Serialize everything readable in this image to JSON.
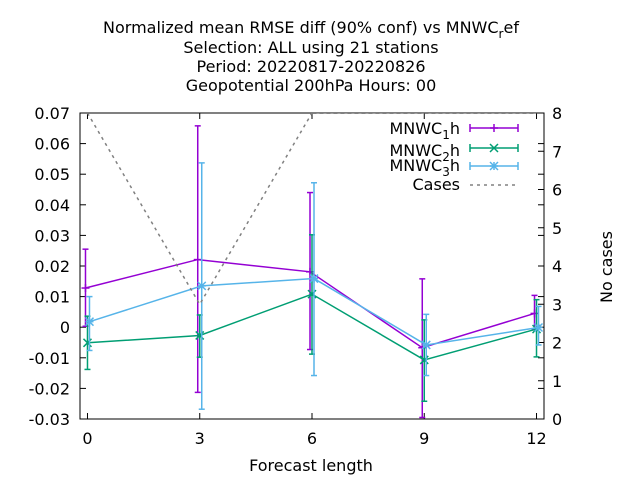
{
  "chart_data": {
    "type": "line",
    "title": {
      "line1_main": "Normalized mean RMSE diff (90% conf) vs MNWC",
      "line1_sub": "r",
      "line1_tail": "ef",
      "line2": "Selection: ALL using    21 stations",
      "line3": "Period: 20220817-20220826",
      "line4": "Geopotential 200hPa   Hours:  00"
    },
    "xlabel": "Forecast length",
    "y2label": "No cases",
    "xlim": [
      -0.2,
      12.2
    ],
    "ylim": [
      -0.03,
      0.07
    ],
    "y2lim": [
      0,
      8
    ],
    "x_ticks": [
      0,
      3,
      6,
      9,
      12
    ],
    "y_ticks": [
      "-0.03",
      "-0.02",
      "-0.01",
      "0",
      "0.01",
      "0.02",
      "0.03",
      "0.04",
      "0.05",
      "0.06",
      "0.07"
    ],
    "y2_ticks": [
      "0",
      "1",
      "2",
      "3",
      "4",
      "5",
      "6",
      "7",
      "8"
    ],
    "legend_position": "top-right",
    "series": [
      {
        "name_main": "MNWC",
        "name_sub": "1",
        "name_tail": "h",
        "color": "#9400d3",
        "marker": "plus",
        "x": [
          0,
          3,
          6,
          9,
          12
        ],
        "y": [
          0.0128,
          0.0221,
          0.0181,
          -0.0067,
          0.0045
        ],
        "ylow": [
          0.0003,
          -0.0213,
          -0.0073,
          -0.0295,
          -0.0006
        ],
        "yhigh": [
          0.0255,
          0.0658,
          0.044,
          0.0158,
          0.0104
        ]
      },
      {
        "name_main": "MNWC",
        "name_sub": "2",
        "name_tail": "h",
        "color": "#009e73",
        "marker": "cross",
        "x": [
          0,
          3,
          6,
          9,
          12
        ],
        "y": [
          -0.0051,
          -0.0027,
          0.0108,
          -0.0107,
          -0.0006
        ],
        "ylow": [
          -0.0138,
          -0.0098,
          -0.0088,
          -0.0242,
          -0.0097
        ],
        "yhigh": [
          0.0036,
          0.004,
          0.0302,
          0.0024,
          0.009
        ]
      },
      {
        "name_main": "MNWC",
        "name_sub": "3",
        "name_tail": "h",
        "color": "#56b4e9",
        "marker": "star",
        "x": [
          0,
          3,
          6,
          9,
          12
        ],
        "y": [
          0.0018,
          0.0135,
          0.0159,
          -0.0058,
          -0.0001
        ],
        "ylow": [
          -0.0076,
          -0.0268,
          -0.0158,
          -0.0158,
          -0.0058
        ],
        "yhigh": [
          0.01,
          0.0537,
          0.0472,
          0.0042,
          0.0068
        ]
      },
      {
        "name": "Cases",
        "color": "#808080",
        "dashed": true,
        "axis": "y2",
        "x": [
          0,
          3,
          6,
          9,
          12
        ],
        "y": [
          8,
          3,
          8,
          8,
          8
        ]
      }
    ]
  }
}
